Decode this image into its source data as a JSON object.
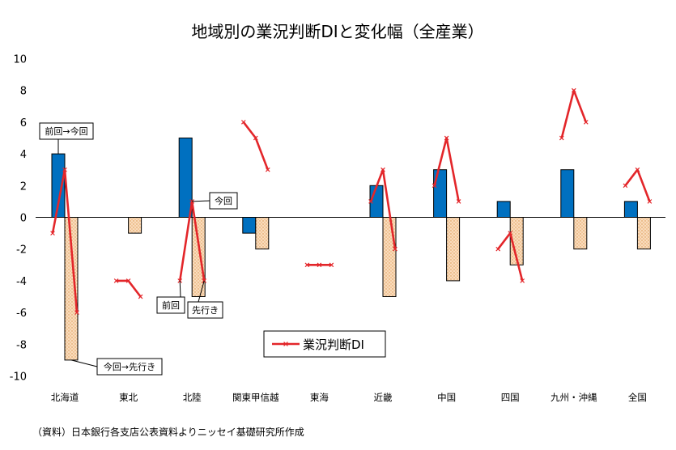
{
  "colors": {
    "change_prev_to_now": "#0070c0",
    "change_now_to_fwd": "#f5c89a",
    "di_line": "#e3262a"
  },
  "chart_data": {
    "type": "bar",
    "title": "地域別の業況判断DIと変化幅（全産業）",
    "categories": [
      "北海道",
      "東北",
      "北陸",
      "関東甲信越",
      "東海",
      "近畿",
      "中国",
      "四国",
      "九州・沖縄",
      "全国"
    ],
    "ylim": [
      -10,
      10
    ],
    "yticks": [
      10,
      8,
      6,
      4,
      2,
      0,
      -2,
      -4,
      -6,
      -8,
      -10
    ],
    "grid": false,
    "series": [
      {
        "name": "前回→今回",
        "type": "bar",
        "values": [
          4,
          0,
          5,
          -1,
          0,
          2,
          3,
          1,
          3,
          1
        ]
      },
      {
        "name": "今回→先行き",
        "type": "bar",
        "values": [
          -9,
          -1,
          -5,
          -2,
          0,
          -5,
          -4,
          -3,
          -2,
          -2
        ]
      },
      {
        "name": "業況判断DI",
        "type": "line",
        "points_per_category": [
          "前回",
          "今回",
          "先行き"
        ],
        "values": [
          [
            -1,
            3,
            -6
          ],
          [
            -4,
            -4,
            -5
          ],
          [
            -4,
            1,
            -4
          ],
          [
            6,
            5,
            3
          ],
          [
            -3,
            -3,
            -3
          ],
          [
            1,
            3,
            -2
          ],
          [
            2,
            5,
            1
          ],
          [
            -2,
            -1,
            -4
          ],
          [
            5,
            8,
            6
          ],
          [
            2,
            3,
            1
          ]
        ]
      }
    ],
    "legend": {
      "label": "業況判断DI",
      "position": "bottom-center"
    },
    "annotations": {
      "prev_now": "前回→今回",
      "now_fwd": "今回→先行き",
      "now": "今回",
      "prev": "前回",
      "fwd": "先行き"
    },
    "source_note": "（資料）日本銀行各支店公表資料よりニッセイ基礎研究所作成"
  }
}
